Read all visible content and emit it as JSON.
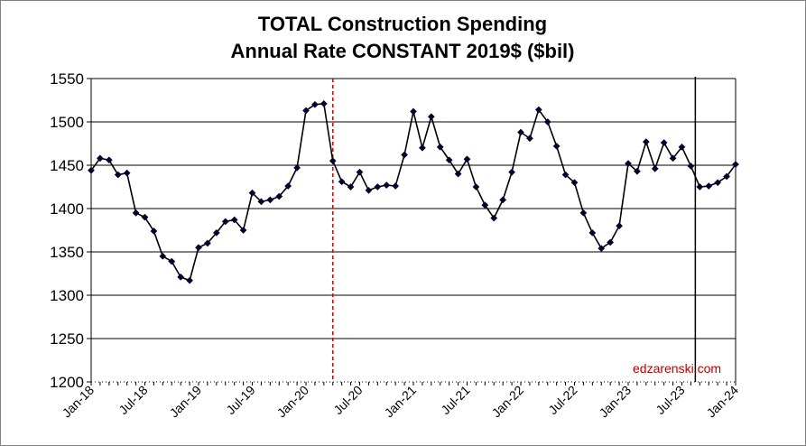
{
  "chart_data": {
    "type": "line",
    "title": [
      "TOTAL Construction Spending",
      "Annual Rate CONSTANT 2019$ ($bil)"
    ],
    "xlabel": "",
    "ylabel": "",
    "ylim": [
      1200,
      1550
    ],
    "yticks": [
      "1550",
      "1500",
      "1450",
      "1400",
      "1350",
      "1300",
      "1250",
      "1200"
    ],
    "ytick_values": [
      1550,
      1500,
      1450,
      1400,
      1350,
      1300,
      1250,
      1200
    ],
    "xticks": [
      "Jan-18",
      "Jul-18",
      "Jan-19",
      "Jul-19",
      "Jan-20",
      "Jul-20",
      "Jan-21",
      "Jul-21",
      "Jan-22",
      "Jul-22",
      "Jan-23",
      "Jul-23",
      "Jan-24"
    ],
    "xtick_months": [
      0,
      6,
      12,
      18,
      24,
      30,
      36,
      42,
      48,
      54,
      60,
      66,
      72
    ],
    "x_range_months": [
      0,
      72
    ],
    "grid": "horizontal",
    "series": [
      {
        "name": "Total Construction Spending (constant 2019$)",
        "color": "#000033",
        "marker": "diamond",
        "values": [
          1444,
          1458,
          1456,
          1439,
          1441,
          1395,
          1390,
          1374,
          1345,
          1339,
          1321,
          1317,
          1355,
          1360,
          1372,
          1385,
          1387,
          1375,
          1418,
          1408,
          1410,
          1414,
          1426,
          1447,
          1513,
          1520,
          1521,
          1455,
          1431,
          1425,
          1442,
          1421,
          1425,
          1427,
          1426,
          1462,
          1512,
          1470,
          1506,
          1471,
          1456,
          1440,
          1457,
          1425,
          1404,
          1389,
          1410,
          1442,
          1488,
          1481,
          1514,
          1500,
          1472,
          1439,
          1430,
          1395,
          1372,
          1354,
          1361,
          1380,
          1452,
          1443,
          1477,
          1446,
          1476,
          1458,
          1471,
          1449,
          1425,
          1426,
          1430,
          1437,
          1451
        ]
      }
    ],
    "reference_lines": [
      {
        "name": "red-dashed-marker",
        "month": 27,
        "color": "#dd0000",
        "style": "dashed"
      },
      {
        "name": "black-vertical-marker",
        "month": 67.5,
        "color": "#000000",
        "style": "solid",
        "y_from": 1200,
        "y_to": 1550
      }
    ],
    "watermark": "edzarenski.com",
    "colors": {
      "plot_bg": "#ffffff",
      "gridline": "#000000",
      "frame": "#808080"
    }
  }
}
